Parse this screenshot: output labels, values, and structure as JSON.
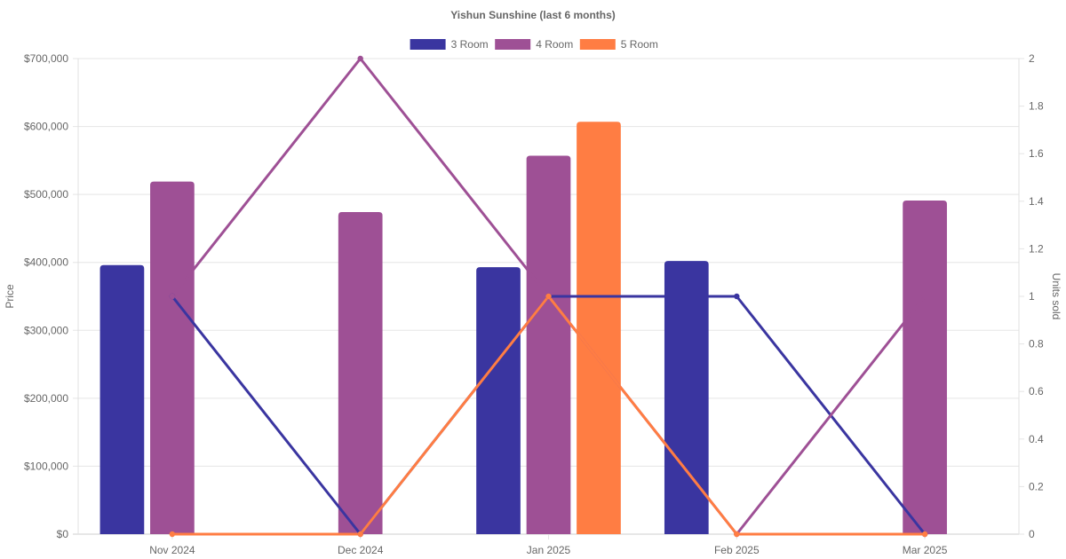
{
  "chart_data": {
    "type": "bar",
    "title": "Yishun Sunshine (last 6 months)",
    "categories": [
      "Nov 2024",
      "Dec 2024",
      "Jan 2025",
      "Feb 2025",
      "Mar 2025"
    ],
    "y_left": {
      "label": "Price",
      "ylim": [
        0,
        700000
      ],
      "ticks": [
        0,
        100000,
        200000,
        300000,
        400000,
        500000,
        600000,
        700000
      ],
      "tick_labels": [
        "$0",
        "$100,000",
        "$200,000",
        "$300,000",
        "$400,000",
        "$500,000",
        "$600,000",
        "$700,000"
      ]
    },
    "y_right": {
      "label": "Units sold",
      "ylim": [
        0,
        2
      ],
      "ticks": [
        0,
        0.2,
        0.4,
        0.6,
        0.8,
        1,
        1.2,
        1.4,
        1.6,
        1.8,
        2
      ],
      "tick_labels": [
        "0",
        "0.2",
        "0.4",
        "0.6",
        "0.8",
        "1",
        "1.2",
        "1.4",
        "1.6",
        "1.8",
        "2"
      ]
    },
    "series": [
      {
        "name": "3 Room",
        "color": "#3a35a0",
        "price": [
          396000,
          null,
          393000,
          402000,
          null
        ],
        "units": [
          1,
          0,
          1,
          1,
          0
        ]
      },
      {
        "name": "4 Room",
        "color": "#9e5095",
        "price": [
          519000,
          474000,
          557000,
          null,
          491000
        ],
        "units": [
          1,
          2,
          1,
          0,
          1
        ]
      },
      {
        "name": "5 Room",
        "color": "#ff7d43",
        "price": [
          null,
          null,
          607000,
          null,
          null
        ],
        "units": [
          0,
          0,
          1,
          0,
          0
        ]
      }
    ],
    "grid": true,
    "legend_position": "top"
  }
}
